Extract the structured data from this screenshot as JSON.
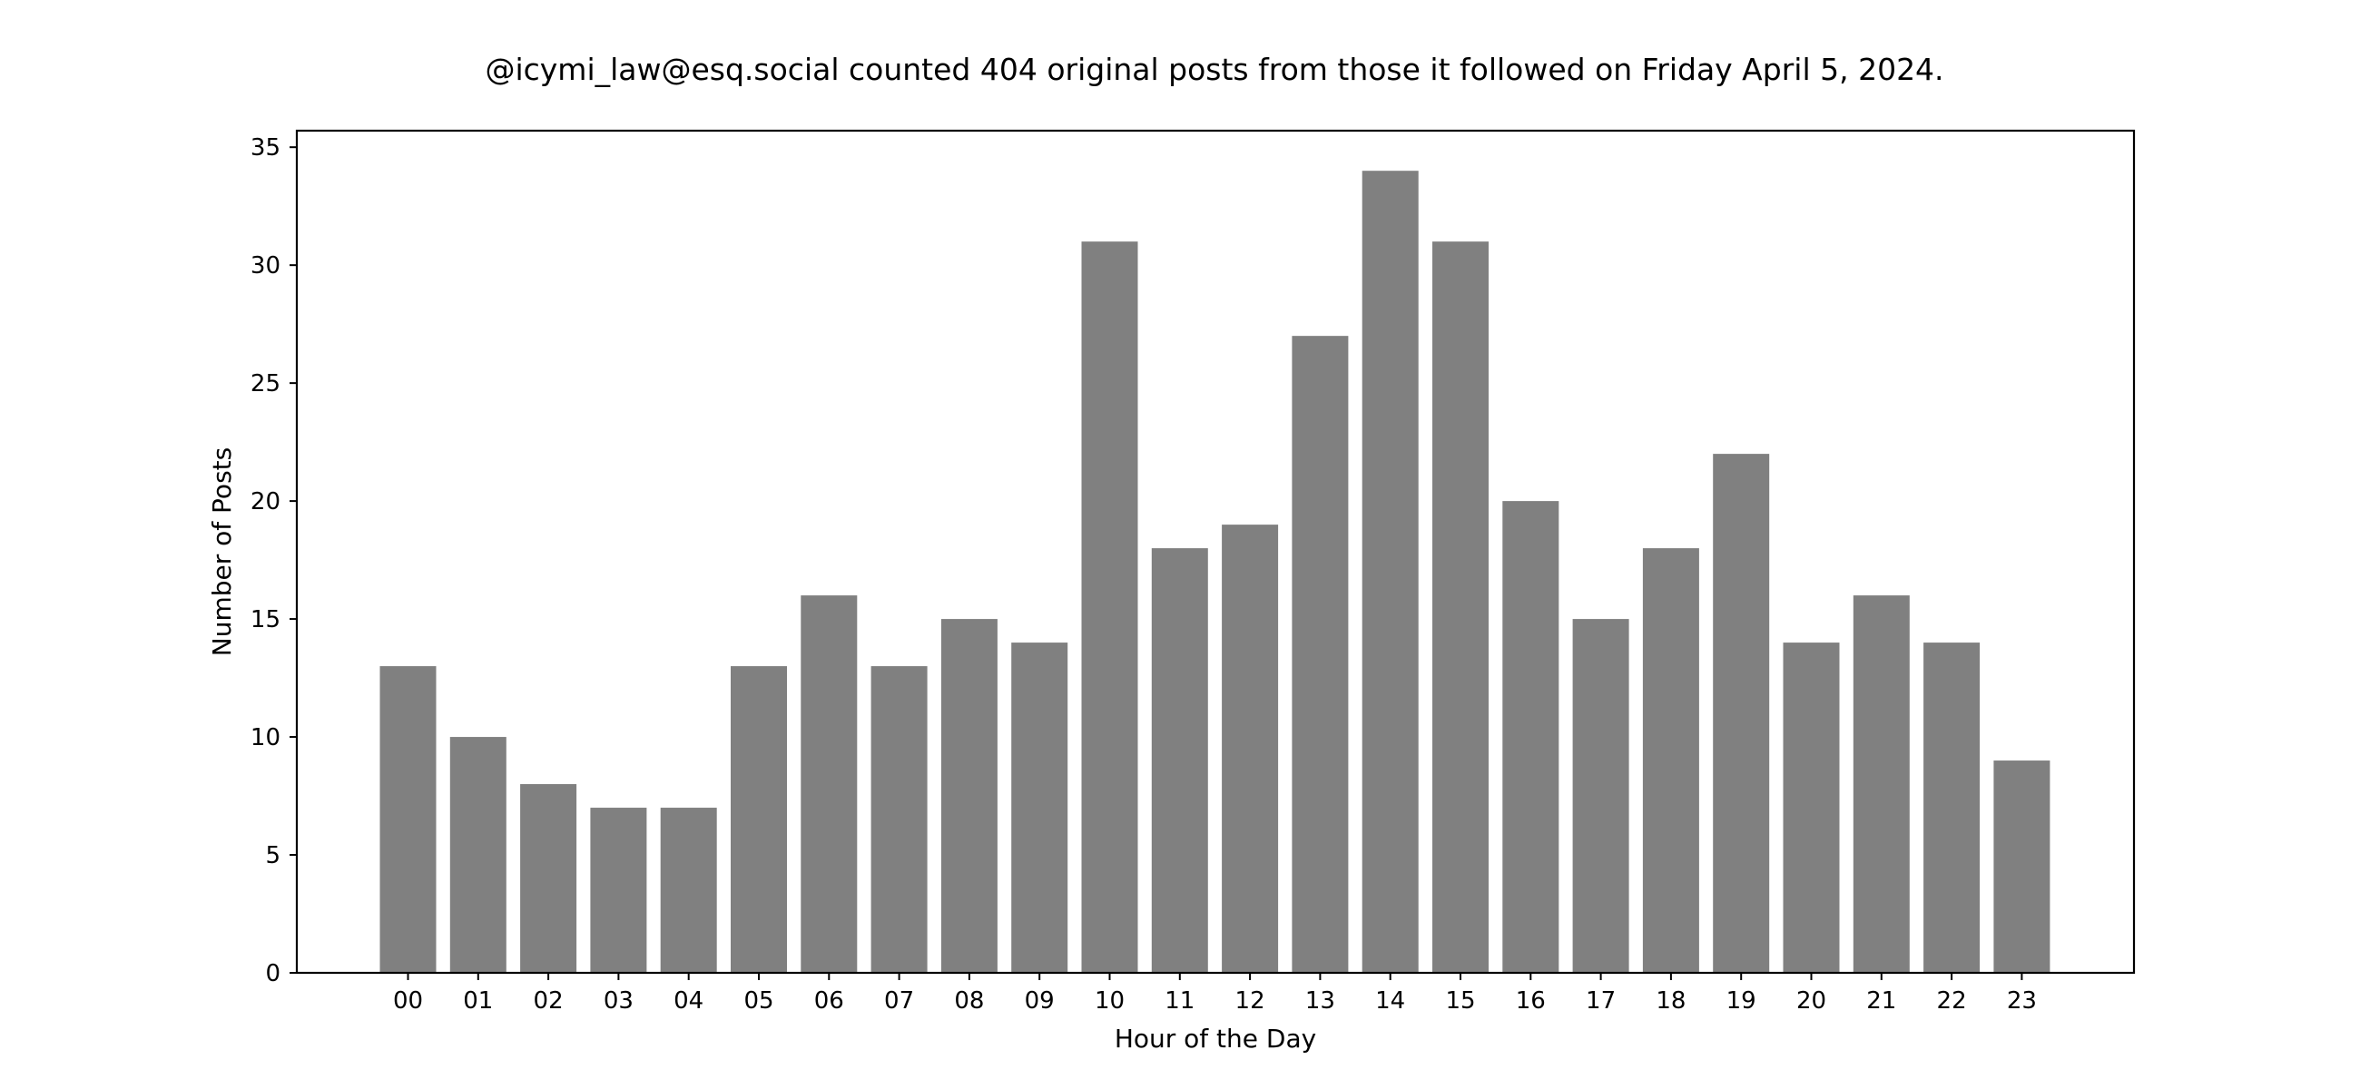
{
  "chart_data": {
    "type": "bar",
    "title": "@icymi_law@esq.social counted 404 original posts from those it followed on Friday April 5, 2024.",
    "xlabel": "Hour of the Day",
    "ylabel": "Number of Posts",
    "categories": [
      "00",
      "01",
      "02",
      "03",
      "04",
      "05",
      "06",
      "07",
      "08",
      "09",
      "10",
      "11",
      "12",
      "13",
      "14",
      "15",
      "16",
      "17",
      "18",
      "19",
      "20",
      "21",
      "22",
      "23"
    ],
    "values": [
      13,
      10,
      8,
      7,
      7,
      13,
      16,
      13,
      15,
      14,
      31,
      18,
      19,
      27,
      34,
      31,
      20,
      15,
      18,
      22,
      14,
      16,
      14,
      9
    ],
    "ylim": [
      0,
      35.7
    ],
    "yticks": [
      0,
      5,
      10,
      15,
      20,
      25,
      30,
      35
    ],
    "grid": false,
    "legend": "none",
    "bar_color": "#808080"
  }
}
